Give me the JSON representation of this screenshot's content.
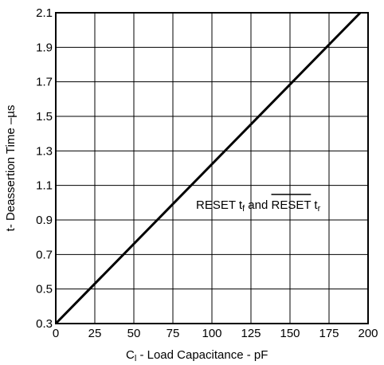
{
  "chart_data": {
    "type": "line",
    "title": "",
    "xlabel": {
      "main": "C",
      "sub": "l",
      "rest": "  - Load Capacitance - pF"
    },
    "ylabel": "t- Deassertion Time –µs",
    "xlim": [
      0,
      200
    ],
    "ylim": [
      0.3,
      2.1
    ],
    "xticks": [
      "0",
      "25",
      "50",
      "75",
      "100",
      "125",
      "150",
      "175",
      "200"
    ],
    "yticks": [
      "0.3",
      "0.5",
      "0.7",
      "0.9",
      "1.1",
      "1.3",
      "1.5",
      "1.7",
      "1.9",
      "2.1"
    ],
    "grid": true,
    "series": [
      {
        "x": [
          0,
          195
        ],
        "y": [
          0.3,
          2.1
        ]
      }
    ],
    "annotation": {
      "part1": "RESET t",
      "sub1": "f",
      "part2": " and ",
      "overlined": "RESET",
      "part3": " t",
      "sub2": "r"
    }
  }
}
